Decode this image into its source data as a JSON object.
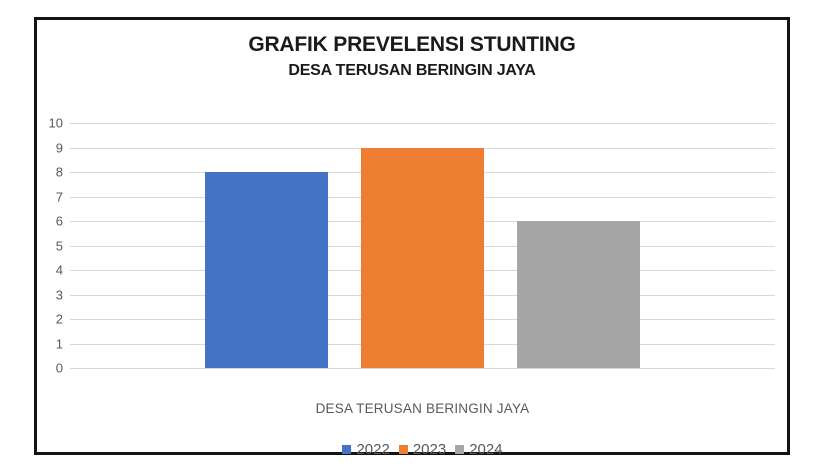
{
  "title": "GRAFIK PREVELENSI STUNTING",
  "subtitle": "DESA TERUSAN BERINGIN JAYA",
  "chart_data": {
    "type": "bar",
    "title": "GRAFIK PREVELENSI STUNTING",
    "subtitle": "DESA TERUSAN BERINGIN JAYA",
    "categories": [
      "DESA TERUSAN BERINGIN JAYA"
    ],
    "series": [
      {
        "name": "2022",
        "values": [
          8
        ],
        "color": "#4472C4"
      },
      {
        "name": "2023",
        "values": [
          9
        ],
        "color": "#ED7D31"
      },
      {
        "name": "2024",
        "values": [
          6
        ],
        "color": "#A6A6A6"
      }
    ],
    "xlabel": "",
    "ylabel": "",
    "ylim": [
      0,
      10
    ],
    "ytick_step": 1,
    "grid": true,
    "legend_position": "bottom",
    "gridline_color": "#d9d9d9",
    "axis_label_color": "#595959",
    "frame_border_color": "#141414"
  }
}
